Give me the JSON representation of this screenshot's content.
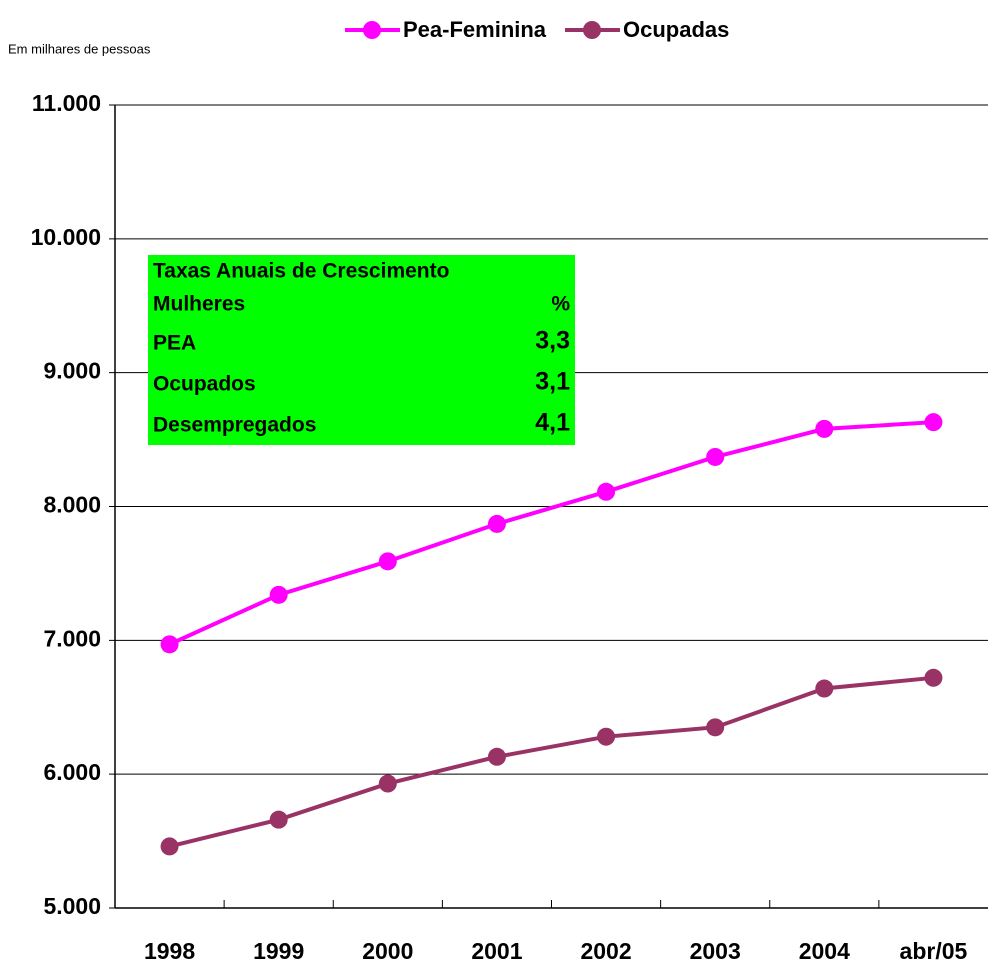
{
  "chart_data": {
    "type": "line",
    "subtitle": "Em milhares de pessoas",
    "categories": [
      "1998",
      "1999",
      "2000",
      "2001",
      "2002",
      "2003",
      "2004",
      "abr/05"
    ],
    "series": [
      {
        "name": "Pea-Feminina",
        "color": "#ff00ff",
        "values": [
          6970,
          7340,
          7590,
          7870,
          8110,
          8370,
          8580,
          8630
        ]
      },
      {
        "name": "Ocupadas",
        "color": "#993366",
        "values": [
          5460,
          5660,
          5930,
          6130,
          6280,
          6350,
          6640,
          6720
        ]
      }
    ],
    "ylim": [
      5000,
      11000
    ],
    "yticks": [
      {
        "value": 5000,
        "label": "5.000"
      },
      {
        "value": 6000,
        "label": "6.000"
      },
      {
        "value": 7000,
        "label": "7.000"
      },
      {
        "value": 8000,
        "label": "8.000"
      },
      {
        "value": 9000,
        "label": "9.000"
      },
      {
        "value": 10000,
        "label": "10.000"
      },
      {
        "value": 11000,
        "label": "11.000"
      }
    ],
    "grid": true,
    "legend": "top",
    "annotation_table": {
      "title": "Taxas Anuais de Crescimento",
      "header": [
        "Mulheres",
        "%"
      ],
      "rows": [
        [
          "PEA",
          "3,3"
        ],
        [
          "Ocupados",
          "3,1"
        ],
        [
          "Desempregados",
          "4,1"
        ]
      ],
      "color": "#00ff00"
    }
  }
}
